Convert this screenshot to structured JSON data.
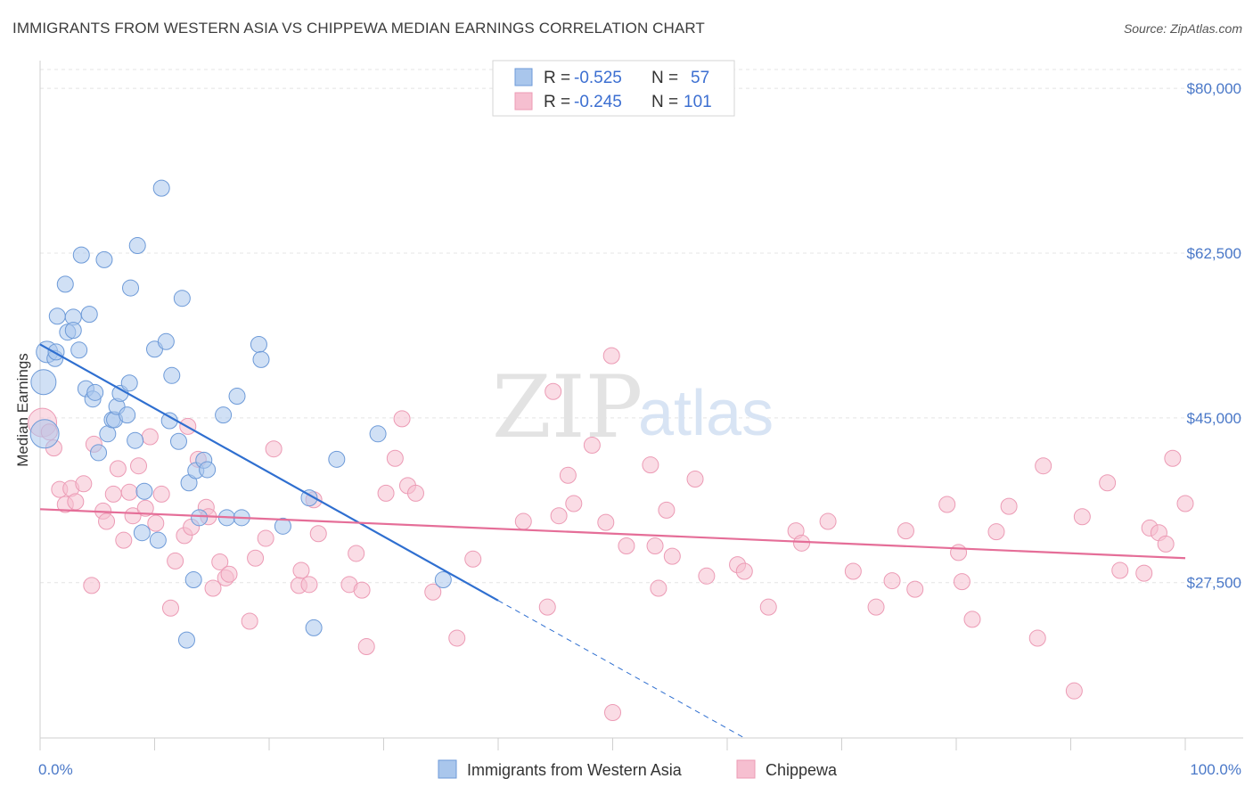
{
  "header": {
    "title": "IMMIGRANTS FROM WESTERN ASIA VS CHIPPEWA MEDIAN EARNINGS CORRELATION CHART",
    "source": "Source: ZipAtlas.com"
  },
  "watermark": {
    "zip": "ZIP",
    "atlas": "atlas"
  },
  "legend": {
    "rows": [
      {
        "r_label": "R =",
        "r_value": "-0.525",
        "n_label": "N =",
        "n_value": "57"
      },
      {
        "r_label": "R =",
        "r_value": "-0.245",
        "n_label": "N =",
        "n_value": "101"
      }
    ]
  },
  "bottom_legend": {
    "series1": "Immigrants from Western Asia",
    "series2": "Chippewa"
  },
  "colors": {
    "blue_fill": "#a9c6ec",
    "blue_stroke": "#6d9ad8",
    "blue_line": "#2f6fd0",
    "pink_fill": "#f6bfd0",
    "pink_stroke": "#ec9bb5",
    "pink_line": "#e56e98",
    "tick": "#4a78c8"
  },
  "chart_data": {
    "type": "scatter",
    "title": "IMMIGRANTS FROM WESTERN ASIA VS CHIPPEWA MEDIAN EARNINGS CORRELATION CHART",
    "xlabel": "",
    "ylabel": "Median Earnings",
    "x_tick_labels": [
      "0.0%",
      "100.0%"
    ],
    "y_tick_labels": [
      "$27,500",
      "$45,000",
      "$62,500",
      "$80,000"
    ],
    "y_ticks": [
      27500,
      45000,
      62500,
      80000
    ],
    "xlim": [
      0,
      100
    ],
    "ylim": [
      11000,
      82000
    ],
    "grid": true,
    "legend_position": "top-center",
    "series": [
      {
        "name": "Immigrants from Western Asia",
        "R": -0.525,
        "N": 57,
        "trend": {
          "x0": 0,
          "y0": 52800,
          "x1": 40,
          "y1": 25600,
          "dash_to_x": 61.5,
          "dash_to_y": 11000
        },
        "points": [
          [
            0.3,
            48800,
            14
          ],
          [
            0.6,
            52000,
            12
          ],
          [
            0.4,
            43300,
            16
          ],
          [
            1.3,
            51300,
            9
          ],
          [
            1.4,
            52000,
            9
          ],
          [
            1.5,
            55800,
            9
          ],
          [
            2.2,
            59200,
            9
          ],
          [
            2.4,
            54100,
            9
          ],
          [
            2.9,
            55700,
            9
          ],
          [
            2.9,
            54300,
            9
          ],
          [
            3.4,
            52200,
            9
          ],
          [
            3.6,
            62300,
            9
          ],
          [
            4.3,
            56000,
            9
          ],
          [
            4.0,
            48100,
            9
          ],
          [
            4.6,
            47000,
            9
          ],
          [
            4.8,
            47700,
            9
          ],
          [
            5.1,
            41300,
            9
          ],
          [
            5.6,
            61800,
            9
          ],
          [
            5.9,
            43300,
            9
          ],
          [
            6.3,
            44800,
            9
          ],
          [
            6.5,
            44800,
            9
          ],
          [
            6.7,
            46200,
            9
          ],
          [
            7.0,
            47600,
            9
          ],
          [
            7.6,
            45300,
            9
          ],
          [
            7.8,
            48700,
            9
          ],
          [
            7.9,
            58800,
            9
          ],
          [
            8.3,
            42600,
            9
          ],
          [
            8.5,
            63300,
            9
          ],
          [
            8.9,
            32800,
            9
          ],
          [
            9.1,
            37200,
            9
          ],
          [
            10.0,
            52300,
            9
          ],
          [
            10.3,
            32000,
            9
          ],
          [
            10.6,
            69400,
            9
          ],
          [
            11.0,
            53100,
            9
          ],
          [
            11.3,
            44700,
            9
          ],
          [
            11.5,
            49500,
            9
          ],
          [
            12.1,
            42500,
            9
          ],
          [
            12.4,
            57700,
            9
          ],
          [
            12.8,
            21400,
            9
          ],
          [
            13.0,
            38100,
            9
          ],
          [
            13.4,
            27800,
            9
          ],
          [
            13.6,
            39400,
            9
          ],
          [
            13.9,
            34400,
            9
          ],
          [
            14.3,
            40500,
            9
          ],
          [
            14.6,
            39500,
            9
          ],
          [
            16.0,
            45300,
            9
          ],
          [
            16.3,
            34400,
            9
          ],
          [
            17.2,
            47300,
            9
          ],
          [
            17.6,
            34400,
            9
          ],
          [
            19.1,
            52800,
            9
          ],
          [
            19.3,
            51200,
            9
          ],
          [
            21.2,
            33500,
            9
          ],
          [
            23.5,
            36500,
            9
          ],
          [
            23.9,
            22700,
            9
          ],
          [
            25.9,
            40600,
            9
          ],
          [
            29.5,
            43300,
            9
          ],
          [
            35.2,
            27800,
            9
          ]
        ]
      },
      {
        "name": "Chippewa",
        "R": -0.245,
        "N": 101,
        "trend": {
          "x0": 0,
          "y0": 35300,
          "x1": 100,
          "y1": 30100
        },
        "points": [
          [
            0.2,
            44500,
            16
          ],
          [
            0.8,
            43500,
            9
          ],
          [
            1.2,
            41800,
            9
          ],
          [
            1.7,
            37400,
            9
          ],
          [
            2.2,
            35800,
            9
          ],
          [
            2.7,
            37500,
            9
          ],
          [
            3.1,
            36100,
            9
          ],
          [
            3.8,
            38000,
            9
          ],
          [
            4.5,
            27200,
            9
          ],
          [
            4.7,
            42200,
            9
          ],
          [
            5.5,
            35100,
            9
          ],
          [
            5.8,
            34000,
            9
          ],
          [
            6.4,
            36900,
            9
          ],
          [
            6.8,
            39600,
            9
          ],
          [
            7.3,
            32000,
            9
          ],
          [
            7.8,
            37100,
            9
          ],
          [
            8.1,
            34600,
            9
          ],
          [
            8.6,
            39900,
            9
          ],
          [
            9.2,
            35400,
            9
          ],
          [
            9.6,
            43000,
            9
          ],
          [
            10.1,
            33800,
            9
          ],
          [
            10.6,
            36900,
            9
          ],
          [
            11.4,
            24800,
            9
          ],
          [
            11.8,
            29800,
            9
          ],
          [
            12.6,
            32500,
            9
          ],
          [
            12.9,
            44100,
            9
          ],
          [
            13.2,
            33400,
            9
          ],
          [
            13.8,
            40600,
            9
          ],
          [
            14.5,
            35500,
            9
          ],
          [
            14.7,
            34500,
            9
          ],
          [
            15.1,
            26900,
            9
          ],
          [
            15.7,
            29700,
            9
          ],
          [
            16.2,
            28000,
            9
          ],
          [
            16.5,
            28400,
            9
          ],
          [
            18.3,
            23400,
            9
          ],
          [
            18.8,
            30100,
            9
          ],
          [
            19.7,
            32200,
            9
          ],
          [
            20.4,
            41700,
            9
          ],
          [
            22.6,
            27200,
            9
          ],
          [
            22.8,
            28800,
            9
          ],
          [
            23.5,
            27300,
            9
          ],
          [
            23.9,
            36300,
            9
          ],
          [
            24.3,
            32700,
            9
          ],
          [
            27.0,
            27300,
            9
          ],
          [
            27.6,
            30600,
            9
          ],
          [
            28.1,
            26700,
            9
          ],
          [
            28.5,
            20700,
            9
          ],
          [
            30.2,
            37000,
            9
          ],
          [
            31.0,
            40700,
            9
          ],
          [
            31.6,
            44900,
            9
          ],
          [
            32.1,
            37800,
            9
          ],
          [
            32.8,
            37000,
            9
          ],
          [
            34.3,
            26500,
            9
          ],
          [
            36.4,
            21600,
            9
          ],
          [
            37.8,
            30000,
            9
          ],
          [
            42.2,
            34000,
            9
          ],
          [
            44.3,
            24900,
            9
          ],
          [
            44.8,
            47800,
            9
          ],
          [
            45.3,
            34600,
            9
          ],
          [
            46.1,
            38900,
            9
          ],
          [
            46.6,
            35900,
            9
          ],
          [
            48.2,
            42100,
            9
          ],
          [
            49.4,
            33900,
            9
          ],
          [
            49.9,
            51600,
            9
          ],
          [
            50.0,
            13700,
            9
          ],
          [
            51.2,
            31400,
            9
          ],
          [
            53.3,
            40000,
            9
          ],
          [
            53.7,
            31400,
            9
          ],
          [
            54.0,
            26900,
            9
          ],
          [
            54.7,
            35200,
            9
          ],
          [
            55.2,
            30300,
            9
          ],
          [
            57.2,
            38500,
            9
          ],
          [
            58.2,
            28200,
            9
          ],
          [
            60.9,
            29400,
            9
          ],
          [
            61.5,
            28700,
            9
          ],
          [
            63.6,
            24900,
            9
          ],
          [
            66.0,
            33000,
            9
          ],
          [
            66.5,
            31700,
            9
          ],
          [
            68.8,
            34000,
            9
          ],
          [
            71.0,
            28700,
            9
          ],
          [
            73.0,
            24900,
            9
          ],
          [
            74.4,
            27700,
            9
          ],
          [
            75.6,
            33000,
            9
          ],
          [
            76.4,
            26800,
            9
          ],
          [
            79.2,
            35800,
            9
          ],
          [
            80.2,
            30700,
            9
          ],
          [
            80.5,
            27600,
            9
          ],
          [
            81.4,
            23600,
            9
          ],
          [
            83.5,
            32900,
            9
          ],
          [
            84.6,
            35600,
            9
          ],
          [
            87.1,
            21600,
            9
          ],
          [
            87.6,
            39900,
            9
          ],
          [
            90.3,
            16000,
            9
          ],
          [
            91.0,
            34500,
            9
          ],
          [
            93.2,
            38100,
            9
          ],
          [
            94.3,
            28800,
            9
          ],
          [
            96.4,
            28500,
            9
          ],
          [
            96.9,
            33300,
            9
          ],
          [
            97.7,
            32800,
            9
          ],
          [
            98.3,
            31600,
            9
          ],
          [
            98.9,
            40700,
            9
          ],
          [
            100.0,
            35900,
            9
          ]
        ]
      }
    ]
  }
}
